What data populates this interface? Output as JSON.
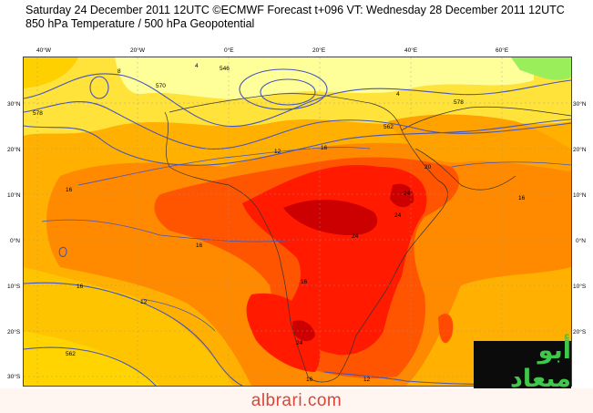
{
  "header": {
    "title": "Saturday 24 December 2011 12UTC ©ECMWF Forecast t+096 VT: Wednesday 28 December 2011 12UTC",
    "subtitle": "850 hPa Temperature / 500 hPa Geopotential"
  },
  "map": {
    "lon_labels": [
      "40°W",
      "20°W",
      "0°E",
      "20°E",
      "40°E",
      "60°E"
    ],
    "lat_labels": [
      "30°N",
      "20°N",
      "10°N",
      "0°N",
      "10°S",
      "20°S",
      "30°S"
    ],
    "contour_labels": [
      "16",
      "16",
      "12",
      "12",
      "16",
      "16",
      "16",
      "24",
      "24",
      "24",
      "24",
      "20",
      "12",
      "16",
      "4",
      "4",
      "8",
      "16",
      "562",
      "562",
      "578",
      "570",
      "546",
      "578"
    ],
    "colors": {
      "pale": "#ffff99",
      "yellow": "#ffe23a",
      "light_orange": "#ffc400",
      "orange": "#ffa200",
      "deep_orange": "#ff7a00",
      "red_orange": "#ff4a00",
      "red": "#ff1a00",
      "dark_red": "#cc0000",
      "green": "#9aee5a",
      "contour": "#4455bb"
    }
  },
  "logo": {
    "text": "أبو ميعاد"
  },
  "footer": {
    "text": "albrari.com"
  }
}
